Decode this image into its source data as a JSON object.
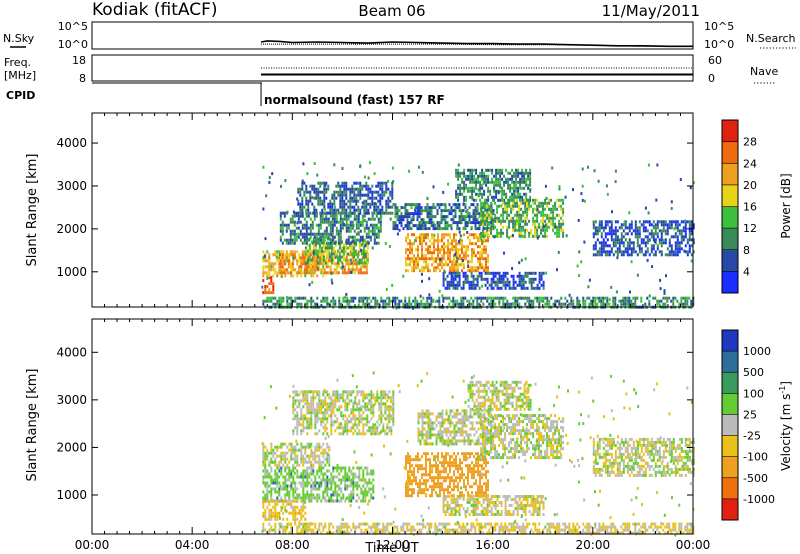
{
  "header": {
    "station": "Kodiak (fitACF)",
    "beam": "Beam 06",
    "date": "11/May/2011"
  },
  "noise_panel": {
    "left_label": "N.Sky",
    "right_label": "N.Search",
    "y_tick_top": "10^5",
    "y_tick_bottom": "10^0",
    "sky_series": [
      [
        6.75,
        1.3
      ],
      [
        7.0,
        1.5
      ],
      [
        7.5,
        1.4
      ],
      [
        8.0,
        1.2
      ],
      [
        9.0,
        1.3
      ],
      [
        10.0,
        1.2
      ],
      [
        11.0,
        1.1
      ],
      [
        12.0,
        1.3
      ],
      [
        13.0,
        1.2
      ],
      [
        14.0,
        1.1
      ],
      [
        15.0,
        1.0
      ],
      [
        16.0,
        1.0
      ],
      [
        17.0,
        0.9
      ],
      [
        18.0,
        0.9
      ],
      [
        19.0,
        0.8
      ],
      [
        20.0,
        0.7
      ],
      [
        21.0,
        0.6
      ],
      [
        22.0,
        0.6
      ],
      [
        23.0,
        0.5
      ],
      [
        24.0,
        0.5
      ]
    ],
    "search_series": [
      [
        6.75,
        0.9
      ],
      [
        8.0,
        0.9
      ],
      [
        10.0,
        0.9
      ],
      [
        12.0,
        0.9
      ],
      [
        14.0,
        0.9
      ],
      [
        16.0,
        0.8
      ],
      [
        18.0,
        0.8
      ],
      [
        20.0,
        0.7
      ],
      [
        22.0,
        0.5
      ],
      [
        24.0,
        0.5
      ]
    ]
  },
  "freq_panel": {
    "left_label_1": "Freq.",
    "left_label_2": "[MHz]",
    "right_label": "Nave",
    "left_tick_top": "18",
    "left_tick_bottom": "8",
    "right_tick_top": "60",
    "right_tick_bottom": "0",
    "freq_mhz": 10.5,
    "nave": 30
  },
  "cpid": {
    "label": "CPID",
    "program": "normalsound (fast) 157 RF",
    "start_hour": 6.75
  },
  "axes": {
    "ylabel": "Slant Range [km]",
    "xlabel": "Time UT",
    "x_ticks": [
      "00:00",
      "04:00",
      "08:00",
      "12:00",
      "16:00",
      "20:00",
      "00:00"
    ],
    "x_tick_hours": [
      0,
      4,
      8,
      12,
      16,
      20,
      24
    ],
    "y_ticks": [
      "1000",
      "2000",
      "3000",
      "4000"
    ],
    "y_tick_km": [
      1000,
      2000,
      3000,
      4000
    ],
    "xlim_hours": [
      0,
      24
    ],
    "ylim_km": [
      180,
      4700
    ]
  },
  "power_scale": {
    "label": "Power [dB]",
    "ticks": [
      "4",
      "8",
      "12",
      "16",
      "20",
      "24",
      "28"
    ],
    "range_db": [
      0,
      32
    ],
    "colors": [
      "#1a2eff",
      "#2848a8",
      "#3a8a5a",
      "#3dbf3d",
      "#e8d21a",
      "#f0a020",
      "#f06a10",
      "#e02010"
    ]
  },
  "velocity_scale": {
    "label": "Velocity [m s^-1]",
    "ticks": [
      "1000",
      "500",
      "100",
      "25",
      "-25",
      "-100",
      "-500",
      "-1000"
    ],
    "colors": [
      "#2038c0",
      "#2e6e9c",
      "#3a9c5c",
      "#66cc33",
      "#bbbbbb",
      "#e8c21a",
      "#f0a020",
      "#f07010",
      "#e02010"
    ]
  },
  "chart_data": {
    "type": "heatmap",
    "xlabel": "Time UT",
    "ylabel": "Slant Range [km]",
    "xlim": [
      0,
      24
    ],
    "ylim": [
      180,
      4700
    ],
    "power_regions": [
      {
        "t0": 6.8,
        "t1": 7.2,
        "r0": 500,
        "r1": 900,
        "db": 27
      },
      {
        "t0": 6.8,
        "t1": 9.2,
        "r0": 900,
        "r1": 1500,
        "db": 20
      },
      {
        "t0": 7.5,
        "t1": 11.0,
        "r0": 1000,
        "r1": 1500,
        "db": 23
      },
      {
        "t0": 8.5,
        "t1": 11.0,
        "r0": 1200,
        "r1": 1800,
        "db": 14
      },
      {
        "t0": 7.5,
        "t1": 11.5,
        "r0": 1700,
        "r1": 2400,
        "db": 9
      },
      {
        "t0": 8.2,
        "t1": 12.0,
        "r0": 2400,
        "r1": 3100,
        "db": 7
      },
      {
        "t0": 12.5,
        "t1": 15.8,
        "r0": 1000,
        "r1": 1900,
        "db": 22
      },
      {
        "t0": 12.0,
        "t1": 16.0,
        "r0": 2000,
        "r1": 2600,
        "db": 8
      },
      {
        "t0": 14.5,
        "t1": 17.5,
        "r0": 2700,
        "r1": 3400,
        "db": 10
      },
      {
        "t0": 15.5,
        "t1": 18.8,
        "r0": 1800,
        "r1": 2700,
        "db": 13
      },
      {
        "t0": 14.0,
        "t1": 18.0,
        "r0": 600,
        "r1": 1000,
        "db": 6
      },
      {
        "t0": 20.0,
        "t1": 24.0,
        "r0": 1400,
        "r1": 2200,
        "db": 6
      },
      {
        "t0": 6.8,
        "t1": 24.0,
        "r0": 180,
        "r1": 420,
        "db": 10
      }
    ],
    "velocity_regions": [
      {
        "t0": 6.8,
        "t1": 11.2,
        "r0": 900,
        "r1": 1600,
        "v": 50
      },
      {
        "t0": 6.8,
        "t1": 8.5,
        "r0": 500,
        "r1": 900,
        "v": -60
      },
      {
        "t0": 6.8,
        "t1": 9.5,
        "r0": 1600,
        "r1": 2100,
        "v": 0
      },
      {
        "t0": 8.0,
        "t1": 12.0,
        "r0": 2300,
        "r1": 3200,
        "v": 0
      },
      {
        "t0": 12.5,
        "t1": 15.8,
        "r0": 1000,
        "r1": 1900,
        "v": -200
      },
      {
        "t0": 13.0,
        "t1": 16.0,
        "r0": 2100,
        "r1": 2800,
        "v": 0
      },
      {
        "t0": 15.5,
        "t1": 18.8,
        "r0": 1800,
        "r1": 2700,
        "v": 0
      },
      {
        "t0": 15.0,
        "t1": 17.5,
        "r0": 2800,
        "r1": 3400,
        "v": 0
      },
      {
        "t0": 14.0,
        "t1": 18.0,
        "r0": 600,
        "r1": 1000,
        "v": -20
      },
      {
        "t0": 20.0,
        "t1": 24.0,
        "r0": 1400,
        "r1": 2200,
        "v": 0
      },
      {
        "t0": 6.8,
        "t1": 24.0,
        "r0": 180,
        "r1": 420,
        "v": -30
      }
    ]
  }
}
